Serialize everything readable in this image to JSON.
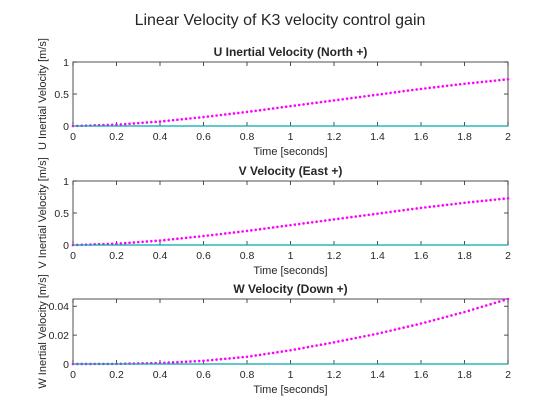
{
  "figure_title": "Linear Velocity of K3 velocity control gain",
  "colors": {
    "commanded": "#ff00ff",
    "actual": "#00aaaa",
    "axis": "#262626"
  },
  "chart_data": [
    {
      "type": "line",
      "title": "U Inertial Velocity (North +)",
      "xlabel": "Time [seconds]",
      "ylabel": "U Inertial Velocity [m/s]",
      "xlim": [
        0,
        2
      ],
      "ylim": [
        0,
        1
      ],
      "xticks": [
        "0",
        "0.2",
        "0.4",
        "0.6",
        "0.8",
        "1",
        "1.2",
        "1.4",
        "1.6",
        "1.8",
        "2"
      ],
      "yticks": [
        "0",
        "0.5",
        "1"
      ],
      "series": [
        {
          "style": "dotted",
          "color": "#ff00ff",
          "x": [
            0,
            0.2,
            0.4,
            0.6,
            0.8,
            1.0,
            1.2,
            1.4,
            1.6,
            1.8,
            2.0
          ],
          "y": [
            0,
            0.02,
            0.07,
            0.14,
            0.22,
            0.31,
            0.4,
            0.49,
            0.58,
            0.66,
            0.73
          ]
        },
        {
          "style": "solid",
          "color": "#00aaaa",
          "x": [
            0,
            2
          ],
          "y": [
            0,
            0
          ]
        }
      ]
    },
    {
      "type": "line",
      "title": "V Velocity (East +)",
      "xlabel": "Time [seconds]",
      "ylabel": "V Inertial Velocity [m/s]",
      "xlim": [
        0,
        2
      ],
      "ylim": [
        0,
        1
      ],
      "xticks": [
        "0",
        "0.2",
        "0.4",
        "0.6",
        "0.8",
        "1",
        "1.2",
        "1.4",
        "1.6",
        "1.8",
        "2"
      ],
      "yticks": [
        "0",
        "0.5",
        "1"
      ],
      "series": [
        {
          "style": "dotted",
          "color": "#ff00ff",
          "x": [
            0,
            0.2,
            0.4,
            0.6,
            0.8,
            1.0,
            1.2,
            1.4,
            1.6,
            1.8,
            2.0
          ],
          "y": [
            0,
            0.02,
            0.07,
            0.14,
            0.22,
            0.31,
            0.4,
            0.49,
            0.58,
            0.66,
            0.73
          ]
        },
        {
          "style": "solid",
          "color": "#00aaaa",
          "x": [
            0,
            2
          ],
          "y": [
            0,
            0
          ]
        }
      ]
    },
    {
      "type": "line",
      "title": "W Velocity (Down +)",
      "xlabel": "Time [seconds]",
      "ylabel": "W Inertial Velocity [m/s]",
      "xlim": [
        0,
        2
      ],
      "ylim": [
        0,
        0.045
      ],
      "xticks": [
        "0",
        "0.2",
        "0.4",
        "0.6",
        "0.8",
        "1",
        "1.2",
        "1.4",
        "1.6",
        "1.8",
        "2"
      ],
      "yticks": [
        "0",
        "0.02",
        "0.04"
      ],
      "series": [
        {
          "style": "dotted",
          "color": "#ff00ff",
          "x": [
            0,
            0.2,
            0.4,
            0.6,
            0.8,
            1.0,
            1.2,
            1.4,
            1.6,
            1.8,
            2.0
          ],
          "y": [
            0,
            0.0001,
            0.0007,
            0.0022,
            0.005,
            0.0095,
            0.015,
            0.021,
            0.028,
            0.036,
            0.045
          ]
        },
        {
          "style": "solid",
          "color": "#00aaaa",
          "x": [
            0,
            2
          ],
          "y": [
            0,
            0
          ]
        }
      ]
    }
  ]
}
